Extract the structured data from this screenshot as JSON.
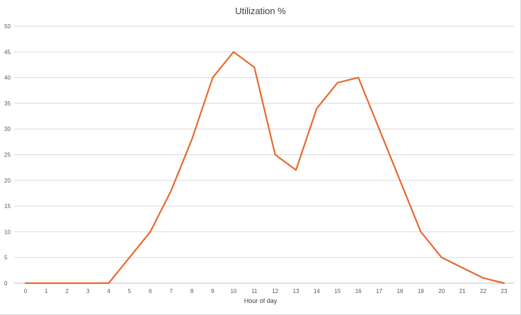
{
  "chart_data": {
    "type": "line",
    "title": "Utilization %",
    "xlabel": "Hour of day",
    "ylabel": "",
    "x": [
      0,
      1,
      2,
      3,
      4,
      5,
      6,
      7,
      8,
      9,
      10,
      11,
      12,
      13,
      14,
      15,
      16,
      17,
      18,
      19,
      20,
      21,
      22,
      23
    ],
    "series": [
      {
        "values": [
          0,
          0,
          0,
          0,
          0,
          5,
          10,
          18,
          28,
          40,
          45,
          42,
          25,
          22,
          34,
          39,
          40,
          30,
          20,
          10,
          5,
          3,
          1,
          0
        ]
      }
    ],
    "ylim": [
      0,
      50
    ],
    "yticks": [
      0,
      5,
      10,
      15,
      20,
      25,
      30,
      35,
      40,
      45,
      50
    ],
    "grid": true,
    "legend": "none",
    "colors": {
      "line": "#E8692E",
      "grid": "#d9d9d9",
      "axis": "#bfbfbf"
    }
  }
}
